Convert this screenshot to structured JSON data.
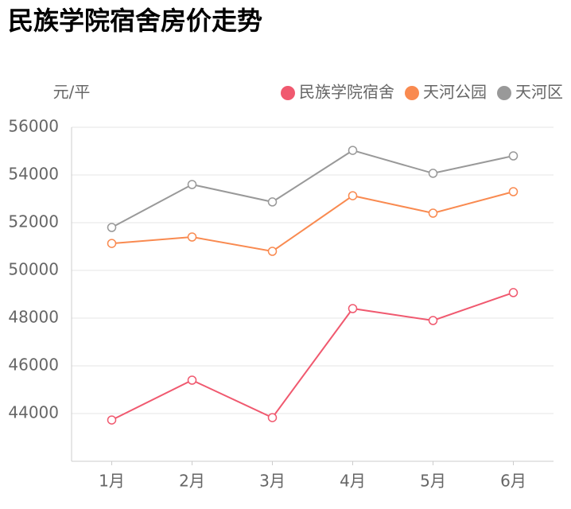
{
  "chart_data": {
    "type": "line",
    "title": "民族学院宿舍房价走势",
    "y_label": "元/平",
    "categories": [
      "1月",
      "2月",
      "3月",
      "4月",
      "5月",
      "6月"
    ],
    "series": [
      {
        "name": "民族学院宿舍",
        "color": "#f0596f",
        "values": [
          43730,
          45400,
          43830,
          48400,
          47900,
          49070
        ]
      },
      {
        "name": "天河公园",
        "color": "#f98a50",
        "values": [
          51130,
          51400,
          50800,
          53130,
          52400,
          53300
        ]
      },
      {
        "name": "天河区",
        "color": "#999999",
        "values": [
          51800,
          53600,
          52870,
          55030,
          54070,
          54800
        ]
      }
    ],
    "ylim": [
      42000,
      56000
    ],
    "yticks": [
      44000,
      46000,
      48000,
      50000,
      52000,
      54000,
      56000
    ],
    "grid": true,
    "legend": "top-right"
  }
}
